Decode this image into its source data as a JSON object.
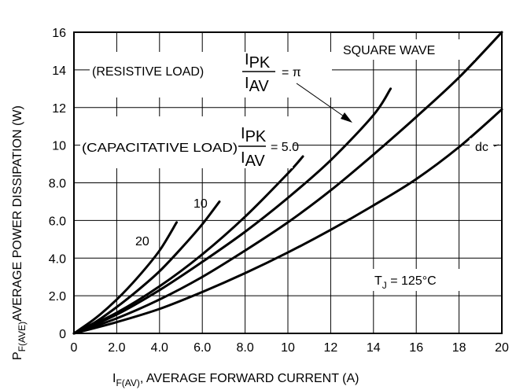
{
  "chart_data": {
    "type": "line",
    "xlabel_main": "I",
    "xlabel_sub": "F(AV)",
    "xlabel_rest": ", AVERAGE FORWARD CURRENT (A)",
    "ylabel_main": "P",
    "ylabel_sub": "F(AVE)",
    "ylabel_rest": "AVERAGE POWER DISSIPATION (W)",
    "xlim": [
      0,
      20
    ],
    "ylim": [
      0,
      16
    ],
    "x_ticks": [
      "0",
      "2.0",
      "4.0",
      "6.0",
      "8.0",
      "10",
      "12",
      "14",
      "16",
      "18",
      "20"
    ],
    "y_ticks": [
      "0",
      "2.0",
      "4.0",
      "6.0",
      "8.0",
      "10",
      "12",
      "14",
      "16"
    ],
    "grid": true,
    "series": [
      {
        "name": "20",
        "x": [
          0,
          1,
          2,
          3,
          4,
          4.8
        ],
        "y": [
          0,
          0.8,
          1.8,
          3.0,
          4.4,
          5.9
        ]
      },
      {
        "name": "10",
        "x": [
          0,
          1,
          2,
          3,
          4,
          5,
          6,
          6.8
        ],
        "y": [
          0,
          0.6,
          1.4,
          2.3,
          3.3,
          4.5,
          5.8,
          7.0
        ]
      },
      {
        "name": "5.0",
        "x": [
          0,
          2,
          4,
          6,
          8,
          10,
          10.7
        ],
        "y": [
          0,
          1.1,
          2.5,
          4.2,
          6.2,
          8.5,
          9.4
        ]
      },
      {
        "name": "π",
        "x": [
          0,
          2,
          4,
          6,
          8,
          10,
          12,
          14,
          14.8
        ],
        "y": [
          0,
          1.0,
          2.3,
          3.8,
          5.4,
          7.2,
          9.2,
          11.6,
          13.0
        ]
      },
      {
        "name": "SQUARE WAVE",
        "x": [
          0,
          2,
          4,
          6,
          8,
          10,
          12,
          14,
          16,
          18,
          20
        ],
        "y": [
          0,
          0.8,
          1.8,
          3.0,
          4.4,
          5.9,
          7.6,
          9.5,
          11.5,
          13.6,
          16.0
        ]
      },
      {
        "name": "dc",
        "x": [
          0,
          2,
          4,
          6,
          8,
          10,
          12,
          14,
          16,
          18,
          20
        ],
        "y": [
          0,
          0.6,
          1.3,
          2.2,
          3.2,
          4.3,
          5.5,
          6.8,
          8.2,
          9.9,
          11.9
        ]
      }
    ],
    "annotations": {
      "square_wave": "SQUARE WAVE",
      "resistive_load": "(RESISTIVE LOAD)",
      "capacitative_load": "(CAPACITATIVE LOAD)",
      "ipk": "I",
      "ipk_sub": "PK",
      "iav": "I",
      "iav_sub": "AV",
      "equals_pi": "= π",
      "equals_five": "= 5.0",
      "dc": "dc",
      "label_20": "20",
      "label_10": "10",
      "tj": "T",
      "tj_sub": "J",
      "tj_rest": " = 125°C"
    }
  }
}
